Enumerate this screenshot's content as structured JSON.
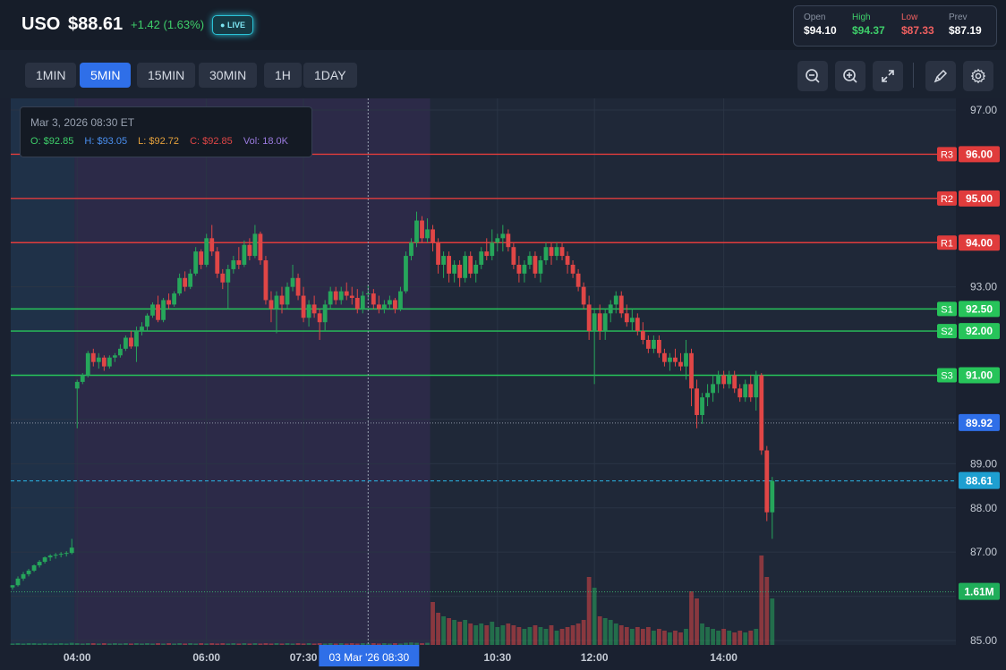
{
  "header": {
    "symbol": "USO",
    "price": "$88.61",
    "change": "+1.42 (1.63%)",
    "live_label": "LIVE",
    "stats": [
      {
        "key": "Open",
        "value": "$94.10",
        "key_color": "#8a93a3",
        "value_color": "#ffffff"
      },
      {
        "key": "High",
        "value": "$94.37",
        "key_color": "#3ecf6a",
        "value_color": "#3ecf6a"
      },
      {
        "key": "Low",
        "value": "$87.33",
        "key_color": "#f06060",
        "value_color": "#f06060"
      },
      {
        "key": "Prev",
        "value": "$87.19",
        "key_color": "#8a93a3",
        "value_color": "#ffffff"
      }
    ]
  },
  "toolbar": {
    "timeframes": [
      "1MIN",
      "5MIN",
      "15MIN",
      "30MIN",
      "1H",
      "1DAY"
    ],
    "active_timeframe": "5MIN",
    "icons": [
      "zoom-out-icon",
      "zoom-in-icon",
      "fullscreen-icon",
      "draw-icon",
      "settings-icon"
    ]
  },
  "tooltip": {
    "date": "Mar 3, 2026 08:30 ET",
    "open": "O: $92.85",
    "high": "H: $93.05",
    "low": "L: $92.72",
    "close": "C: $92.85",
    "volume": "Vol: 18.0K"
  },
  "colors": {
    "up": "#26a65b",
    "down": "#e04646",
    "support": "#27c45a",
    "resistance": "#e03c3c",
    "accent": "#2f6fe8",
    "last": "#2bb8e8"
  },
  "chart_data": {
    "type": "candlestick",
    "y_ticks": [
      "97.00",
      "93.00",
      "89.00",
      "88.00",
      "87.00",
      "85.00"
    ],
    "ylim": [
      85,
      97
    ],
    "x_labels": [
      {
        "label": "04:00",
        "t": 48
      },
      {
        "label": "06:00",
        "t": 72
      },
      {
        "label": "07:30",
        "t": 90
      },
      {
        "label": "10:30",
        "t": 126
      },
      {
        "label": "12:00",
        "t": 144
      },
      {
        "label": "14:00",
        "t": 168
      }
    ],
    "crosshair_label": "03 Mar '26   08:30",
    "crosshair_t": 102,
    "levels": [
      {
        "name": "R3",
        "value": 96.0,
        "label": "96.00",
        "kind": "resistance"
      },
      {
        "name": "R2",
        "value": 95.0,
        "label": "95.00",
        "kind": "resistance"
      },
      {
        "name": "R1",
        "value": 94.0,
        "label": "94.00",
        "kind": "resistance"
      },
      {
        "name": "S1",
        "value": 92.5,
        "label": "92.50",
        "kind": "support"
      },
      {
        "name": "S2",
        "value": 92.0,
        "label": "92.00",
        "kind": "support"
      },
      {
        "name": "S3",
        "value": 91.0,
        "label": "91.00",
        "kind": "support"
      }
    ],
    "markers": [
      {
        "value": 89.92,
        "label": "89.92",
        "kind": "dotted"
      },
      {
        "value": 88.61,
        "label": "88.61",
        "kind": "last"
      }
    ],
    "volume_label": "1.61M",
    "t_range": [
      36,
      183
    ],
    "session_bands": [
      {
        "from": 36,
        "to": 48,
        "kind": "overnight"
      },
      {
        "from": 48,
        "to": 114,
        "kind": "premarket"
      }
    ],
    "candles": [
      [
        36,
        86.2,
        86.25,
        86.15,
        86.25,
        0.04
      ],
      [
        37,
        86.25,
        86.45,
        86.22,
        86.4,
        0.05
      ],
      [
        38,
        86.4,
        86.55,
        86.35,
        86.5,
        0.04
      ],
      [
        39,
        86.5,
        86.62,
        86.45,
        86.58,
        0.05
      ],
      [
        40,
        86.58,
        86.72,
        86.55,
        86.7,
        0.05
      ],
      [
        41,
        86.7,
        86.82,
        86.65,
        86.78,
        0.04
      ],
      [
        42,
        86.78,
        86.9,
        86.74,
        86.88,
        0.05
      ],
      [
        43,
        86.88,
        86.95,
        86.8,
        86.92,
        0.04
      ],
      [
        44,
        86.92,
        86.98,
        86.85,
        86.94,
        0.04
      ],
      [
        45,
        86.94,
        87.0,
        86.88,
        86.96,
        0.05
      ],
      [
        46,
        86.96,
        87.02,
        86.9,
        86.98,
        0.04
      ],
      [
        47,
        86.98,
        87.3,
        86.95,
        87.1,
        0.06
      ],
      [
        48,
        90.7,
        90.9,
        89.8,
        90.85,
        0.05
      ],
      [
        49,
        90.85,
        91.05,
        90.8,
        91.0,
        0.04
      ],
      [
        50,
        91.0,
        91.55,
        90.95,
        91.5,
        0.05
      ],
      [
        51,
        91.5,
        91.6,
        91.2,
        91.3,
        0.05
      ],
      [
        52,
        91.3,
        91.5,
        91.15,
        91.4,
        0.04
      ],
      [
        53,
        91.4,
        91.45,
        91.1,
        91.2,
        0.05
      ],
      [
        54,
        91.2,
        91.45,
        91.15,
        91.4,
        0.04
      ],
      [
        55,
        91.4,
        91.5,
        91.3,
        91.45,
        0.05
      ],
      [
        56,
        91.45,
        91.7,
        91.4,
        91.6,
        0.04
      ],
      [
        57,
        91.6,
        91.9,
        91.55,
        91.85,
        0.05
      ],
      [
        58,
        91.85,
        92.0,
        91.6,
        91.65,
        0.04
      ],
      [
        59,
        91.65,
        92.1,
        91.3,
        92.0,
        0.05
      ],
      [
        60,
        92.0,
        92.2,
        91.9,
        92.1,
        0.04
      ],
      [
        61,
        92.1,
        92.4,
        92.0,
        92.35,
        0.05
      ],
      [
        62,
        92.35,
        92.65,
        92.3,
        92.6,
        0.04
      ],
      [
        63,
        92.6,
        92.8,
        92.2,
        92.25,
        0.05
      ],
      [
        64,
        92.25,
        92.75,
        92.2,
        92.7,
        0.04
      ],
      [
        65,
        92.7,
        92.85,
        92.5,
        92.6,
        0.05
      ],
      [
        66,
        92.6,
        92.9,
        92.55,
        92.85,
        0.04
      ],
      [
        67,
        92.85,
        93.3,
        92.8,
        93.2,
        0.05
      ],
      [
        68,
        93.2,
        93.35,
        92.9,
        93.0,
        0.04
      ],
      [
        69,
        93.0,
        93.4,
        92.95,
        93.3,
        0.05
      ],
      [
        70,
        93.3,
        93.9,
        93.25,
        93.8,
        0.04
      ],
      [
        71,
        93.8,
        93.85,
        93.4,
        93.5,
        0.05
      ],
      [
        72,
        93.5,
        94.2,
        93.45,
        94.1,
        0.04
      ],
      [
        73,
        94.1,
        94.4,
        93.7,
        93.8,
        0.05
      ],
      [
        74,
        93.8,
        93.9,
        93.2,
        93.3,
        0.04
      ],
      [
        75,
        93.3,
        93.4,
        92.95,
        93.1,
        0.05
      ],
      [
        76,
        93.1,
        93.5,
        92.5,
        93.4,
        0.04
      ],
      [
        77,
        93.4,
        93.7,
        93.3,
        93.6,
        0.05
      ],
      [
        78,
        93.6,
        93.9,
        93.4,
        93.5,
        0.04
      ],
      [
        79,
        93.5,
        94.05,
        93.45,
        93.95,
        0.05
      ],
      [
        80,
        93.95,
        94.1,
        93.6,
        93.7,
        0.04
      ],
      [
        81,
        93.7,
        94.4,
        93.65,
        94.2,
        0.05
      ],
      [
        82,
        94.2,
        94.25,
        93.5,
        93.6,
        0.04
      ],
      [
        83,
        93.6,
        93.7,
        92.6,
        92.7,
        0.05
      ],
      [
        84,
        92.7,
        92.9,
        92.2,
        92.5,
        0.04
      ],
      [
        85,
        92.5,
        92.9,
        91.95,
        92.8,
        0.05
      ],
      [
        86,
        92.8,
        93.0,
        92.4,
        92.6,
        0.04
      ],
      [
        87,
        92.6,
        93.1,
        92.5,
        93.0,
        0.05
      ],
      [
        88,
        93.0,
        93.5,
        92.9,
        93.2,
        0.04
      ],
      [
        89,
        93.2,
        93.3,
        92.7,
        92.8,
        0.05
      ],
      [
        90,
        92.8,
        93.0,
        92.2,
        92.3,
        0.04
      ],
      [
        91,
        92.3,
        92.7,
        92.1,
        92.6,
        0.05
      ],
      [
        92,
        92.6,
        92.8,
        92.3,
        92.4,
        0.04
      ],
      [
        93,
        92.4,
        92.5,
        91.8,
        92.2,
        0.05
      ],
      [
        94,
        92.2,
        92.7,
        92.0,
        92.6,
        0.04
      ],
      [
        95,
        92.6,
        93.0,
        92.5,
        92.9,
        0.05
      ],
      [
        96,
        92.9,
        93.0,
        92.6,
        92.7,
        0.04
      ],
      [
        97,
        92.7,
        93.0,
        92.6,
        92.9,
        0.05
      ],
      [
        98,
        92.9,
        93.1,
        92.7,
        92.8,
        0.04
      ],
      [
        99,
        92.8,
        93.0,
        92.6,
        92.75,
        0.05
      ],
      [
        100,
        92.75,
        92.95,
        92.4,
        92.5,
        0.04
      ],
      [
        101,
        92.5,
        92.9,
        92.4,
        92.8,
        0.05
      ],
      [
        102,
        92.85,
        93.05,
        92.72,
        92.85,
        0.04
      ],
      [
        103,
        92.85,
        92.95,
        92.5,
        92.6,
        0.05
      ],
      [
        104,
        92.6,
        92.8,
        92.4,
        92.5,
        0.04
      ],
      [
        105,
        92.5,
        92.7,
        92.4,
        92.6,
        0.05
      ],
      [
        106,
        92.6,
        92.8,
        92.5,
        92.7,
        0.04
      ],
      [
        107,
        92.7,
        92.75,
        92.4,
        92.5,
        0.05
      ],
      [
        108,
        92.5,
        93.0,
        92.45,
        92.9,
        0.04
      ],
      [
        109,
        92.9,
        93.8,
        92.85,
        93.7,
        0.06
      ],
      [
        110,
        93.7,
        94.1,
        93.6,
        94.0,
        0.07
      ],
      [
        111,
        94.0,
        94.7,
        93.9,
        94.5,
        0.06
      ],
      [
        112,
        94.5,
        94.6,
        94.0,
        94.1,
        0.05
      ],
      [
        113,
        94.1,
        94.55,
        94.0,
        94.3,
        0.06
      ],
      [
        114,
        94.3,
        94.4,
        93.8,
        94.0,
        1.2
      ],
      [
        115,
        94.0,
        94.1,
        93.3,
        93.5,
        0.9
      ],
      [
        116,
        93.5,
        93.8,
        93.2,
        93.7,
        0.8
      ],
      [
        117,
        93.7,
        93.8,
        93.1,
        93.3,
        0.75
      ],
      [
        118,
        93.3,
        93.6,
        93.1,
        93.5,
        0.7
      ],
      [
        119,
        93.5,
        93.6,
        93.0,
        93.2,
        0.65
      ],
      [
        120,
        93.2,
        93.8,
        93.1,
        93.7,
        0.7
      ],
      [
        121,
        93.7,
        93.8,
        93.2,
        93.3,
        0.6
      ],
      [
        122,
        93.3,
        93.6,
        93.1,
        93.5,
        0.55
      ],
      [
        123,
        93.5,
        93.9,
        93.4,
        93.8,
        0.6
      ],
      [
        124,
        93.8,
        94.1,
        93.6,
        93.7,
        0.55
      ],
      [
        125,
        93.7,
        94.3,
        93.6,
        94.0,
        0.65
      ],
      [
        126,
        94.0,
        94.2,
        93.8,
        94.1,
        0.5
      ],
      [
        127,
        94.1,
        94.4,
        93.8,
        94.2,
        0.55
      ],
      [
        128,
        94.2,
        94.3,
        93.8,
        93.9,
        0.6
      ],
      [
        129,
        93.9,
        94.0,
        93.4,
        93.5,
        0.55
      ],
      [
        130,
        93.5,
        93.7,
        93.1,
        93.3,
        0.5
      ],
      [
        131,
        93.3,
        93.6,
        93.1,
        93.5,
        0.45
      ],
      [
        132,
        93.5,
        93.8,
        93.4,
        93.7,
        0.5
      ],
      [
        133,
        93.7,
        93.8,
        93.2,
        93.3,
        0.55
      ],
      [
        134,
        93.3,
        93.7,
        93.1,
        93.6,
        0.5
      ],
      [
        135,
        93.6,
        94.0,
        93.5,
        93.9,
        0.45
      ],
      [
        136,
        93.9,
        94.0,
        93.5,
        93.7,
        0.55
      ],
      [
        137,
        93.7,
        94.0,
        93.6,
        93.9,
        0.4
      ],
      [
        138,
        93.9,
        94.0,
        93.6,
        93.7,
        0.45
      ],
      [
        139,
        93.7,
        93.8,
        93.3,
        93.5,
        0.5
      ],
      [
        140,
        93.5,
        93.6,
        93.2,
        93.3,
        0.55
      ],
      [
        141,
        93.3,
        93.4,
        92.9,
        93.0,
        0.6
      ],
      [
        142,
        93.0,
        93.1,
        92.5,
        92.6,
        0.7
      ],
      [
        143,
        92.6,
        92.8,
        91.8,
        92.0,
        1.9
      ],
      [
        144,
        92.0,
        92.5,
        90.8,
        92.4,
        1.6
      ],
      [
        145,
        92.4,
        92.6,
        91.8,
        92.0,
        0.8
      ],
      [
        146,
        92.0,
        92.5,
        91.8,
        92.4,
        0.75
      ],
      [
        147,
        92.4,
        92.7,
        92.2,
        92.6,
        0.7
      ],
      [
        148,
        92.6,
        92.9,
        92.4,
        92.8,
        0.6
      ],
      [
        149,
        92.8,
        92.9,
        92.3,
        92.4,
        0.55
      ],
      [
        150,
        92.4,
        92.6,
        92.1,
        92.2,
        0.5
      ],
      [
        151,
        92.2,
        92.5,
        92.0,
        92.3,
        0.45
      ],
      [
        152,
        92.3,
        92.4,
        91.9,
        92.0,
        0.5
      ],
      [
        153,
        92.0,
        92.2,
        91.7,
        91.8,
        0.45
      ],
      [
        154,
        91.8,
        91.9,
        91.5,
        91.6,
        0.5
      ],
      [
        155,
        91.6,
        91.9,
        91.5,
        91.8,
        0.4
      ],
      [
        156,
        91.8,
        91.9,
        91.4,
        91.5,
        0.45
      ],
      [
        157,
        91.5,
        91.6,
        91.2,
        91.3,
        0.4
      ],
      [
        158,
        91.3,
        91.5,
        91.1,
        91.4,
        0.35
      ],
      [
        159,
        91.4,
        91.6,
        91.2,
        91.3,
        0.4
      ],
      [
        160,
        91.3,
        91.5,
        91.1,
        91.2,
        0.35
      ],
      [
        161,
        91.2,
        91.8,
        90.9,
        91.5,
        0.45
      ],
      [
        162,
        91.5,
        91.6,
        90.3,
        90.7,
        1.5
      ],
      [
        163,
        90.7,
        90.9,
        89.8,
        90.1,
        1.3
      ],
      [
        164,
        90.1,
        90.6,
        89.9,
        90.5,
        0.6
      ],
      [
        165,
        90.5,
        90.8,
        90.3,
        90.6,
        0.5
      ],
      [
        166,
        90.6,
        91.0,
        90.4,
        90.8,
        0.45
      ],
      [
        167,
        90.8,
        91.1,
        90.6,
        91.0,
        0.4
      ],
      [
        168,
        91.0,
        91.1,
        90.7,
        90.8,
        0.45
      ],
      [
        169,
        90.8,
        91.1,
        90.7,
        91.0,
        0.4
      ],
      [
        170,
        91.0,
        91.1,
        90.6,
        90.7,
        0.35
      ],
      [
        171,
        90.7,
        90.8,
        90.4,
        90.5,
        0.4
      ],
      [
        172,
        90.5,
        90.9,
        90.4,
        90.8,
        0.35
      ],
      [
        173,
        90.8,
        91.0,
        90.4,
        90.5,
        0.4
      ],
      [
        174,
        90.5,
        91.1,
        90.2,
        91.0,
        0.45
      ],
      [
        175,
        91.0,
        91.05,
        89.2,
        89.3,
        2.5
      ],
      [
        176,
        89.3,
        89.4,
        87.7,
        87.9,
        1.9
      ],
      [
        177,
        87.9,
        88.7,
        87.3,
        88.61,
        1.3
      ]
    ]
  }
}
